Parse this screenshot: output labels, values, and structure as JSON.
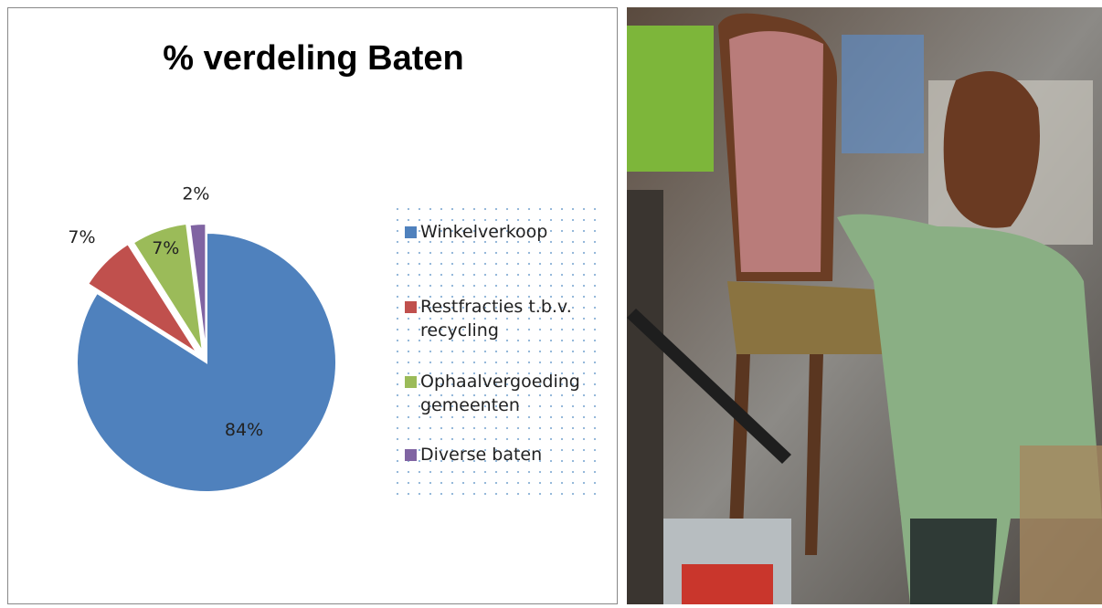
{
  "chart_data": {
    "type": "pie",
    "title": "% verdeling Baten",
    "categories": [
      "Winkelverkoop",
      "Restfracties t.b.v. recycling",
      "Ophaalvergoeding gemeenten",
      "Diverse baten"
    ],
    "values": [
      84,
      7,
      7,
      2
    ],
    "value_labels": [
      "84%",
      "7%",
      "7%",
      "2%"
    ],
    "colors": [
      "#4f81bd",
      "#c0504d",
      "#9bbb59",
      "#8064a2"
    ],
    "legend": "right"
  }
}
